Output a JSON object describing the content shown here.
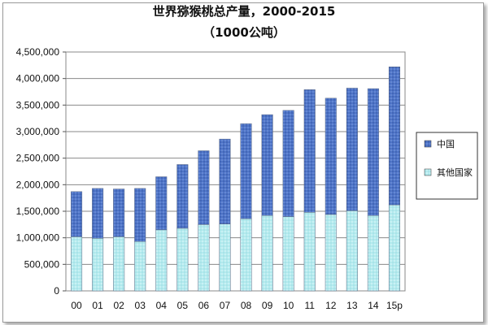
{
  "chart_data": {
    "type": "bar",
    "stacked": true,
    "title": "世界猕猴桃总产量，2000-2015",
    "subtitle": "（1000公吨）",
    "categories": [
      "00",
      "01",
      "02",
      "03",
      "04",
      "05",
      "06",
      "07",
      "08",
      "09",
      "10",
      "11",
      "12",
      "13",
      "14",
      "15p"
    ],
    "series": [
      {
        "name": "其他国家",
        "color": "#aee8ec",
        "values": [
          1020000,
          990000,
          1020000,
          930000,
          1150000,
          1180000,
          1250000,
          1260000,
          1360000,
          1420000,
          1400000,
          1480000,
          1440000,
          1510000,
          1420000,
          1620000
        ]
      },
      {
        "name": "中国",
        "color": "#4a6fc0",
        "values": [
          850000,
          940000,
          900000,
          1000000,
          1000000,
          1200000,
          1390000,
          1600000,
          1790000,
          1900000,
          2000000,
          2310000,
          2190000,
          2310000,
          2390000,
          2600000
        ]
      }
    ],
    "ylim": [
      0,
      4500000
    ],
    "yticks": [
      "0",
      "500,000",
      "1,000,000",
      "1,500,000",
      "2,000,000",
      "2,500,000",
      "3,000,000",
      "3,500,000",
      "4,000,000",
      "4,500,000"
    ],
    "grid": true,
    "legend": {
      "position": "right",
      "order": [
        "中国",
        "其他国家"
      ]
    }
  }
}
